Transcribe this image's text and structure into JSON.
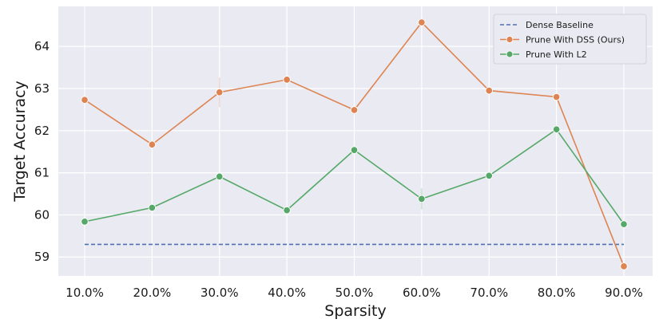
{
  "chart_data": {
    "type": "line",
    "title": "",
    "xlabel": "Sparsity",
    "ylabel": "Target Accuracy",
    "categories": [
      "10.0%",
      "20.0%",
      "30.0%",
      "40.0%",
      "50.0%",
      "60.0%",
      "70.0%",
      "80.0%",
      "90.0%"
    ],
    "yticks": [
      59,
      60,
      61,
      62,
      63,
      64
    ],
    "ylim": [
      58.55,
      64.95
    ],
    "grid": true,
    "background": "#eaeaf2",
    "legend_position": "top-right",
    "series": [
      {
        "name": "Dense Baseline",
        "style": "dashed",
        "marker": false,
        "color": "#4c72b0",
        "values": [
          59.3,
          59.3,
          59.3,
          59.3,
          59.3,
          59.3,
          59.3,
          59.3,
          59.3
        ]
      },
      {
        "name": "Prune With DSS (Ours)",
        "style": "solid",
        "marker": true,
        "color": "#dd8452",
        "values": [
          62.73,
          61.67,
          62.91,
          63.21,
          62.49,
          64.57,
          62.95,
          62.8,
          58.78
        ],
        "error": [
          0.05,
          0.05,
          0.35,
          0.05,
          0.05,
          0.05,
          0.05,
          0.05,
          0.05
        ]
      },
      {
        "name": "Prune With L2",
        "style": "solid",
        "marker": true,
        "color": "#55a868",
        "values": [
          59.84,
          60.17,
          60.91,
          60.11,
          61.54,
          60.38,
          60.93,
          62.03,
          59.78
        ],
        "error": [
          0.05,
          0.05,
          0.05,
          0.05,
          0.05,
          0.25,
          0.05,
          0.05,
          0.05
        ]
      }
    ]
  }
}
